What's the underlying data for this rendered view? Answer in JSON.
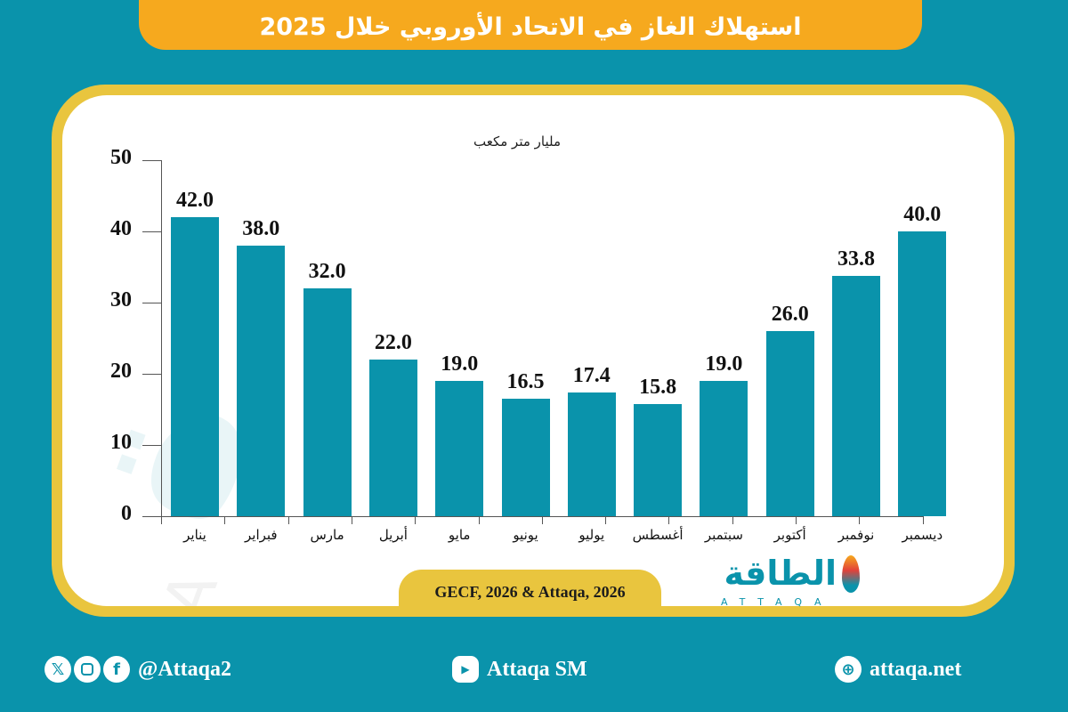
{
  "title": "استهلاك الغاز في الاتحاد الأوروبي خلال 2025",
  "unit_label": "مليار متر مكعب",
  "source": "GECF, 2026 & Attaqa, 2026",
  "logo": {
    "arabic": "الطاقة",
    "latin": "ATTAQA"
  },
  "footer": {
    "social_handle": "@Attaqa2",
    "youtube": "Attaqa SM",
    "website": "attaqa.net",
    "icons": [
      "x-icon",
      "instagram-icon",
      "facebook-icon",
      "youtube-icon",
      "globe-icon"
    ]
  },
  "colors": {
    "background": "#0a93ab",
    "title_bar": "#f6a91e",
    "frame": "#e9c53e",
    "bar": "#0a93ab"
  },
  "y_ticks": [
    "0",
    "10",
    "20",
    "30",
    "40",
    "50"
  ],
  "bars": [
    {
      "label": "يناير",
      "value": "42.0"
    },
    {
      "label": "فبراير",
      "value": "38.0"
    },
    {
      "label": "مارس",
      "value": "32.0"
    },
    {
      "label": "أبريل",
      "value": "22.0"
    },
    {
      "label": "مايو",
      "value": "19.0"
    },
    {
      "label": "يونيو",
      "value": "16.5"
    },
    {
      "label": "يوليو",
      "value": "17.4"
    },
    {
      "label": "أغسطس",
      "value": "15.8"
    },
    {
      "label": "سبتمبر",
      "value": "19.0"
    },
    {
      "label": "أكتوبر",
      "value": "26.0"
    },
    {
      "label": "نوفمبر",
      "value": "33.8"
    },
    {
      "label": "ديسمبر",
      "value": "40.0"
    }
  ],
  "chart_data": {
    "type": "bar",
    "title": "استهلاك الغاز في الاتحاد الأوروبي خلال 2025",
    "ylabel": "مليار متر مكعب",
    "xlabel": "",
    "categories": [
      "يناير",
      "فبراير",
      "مارس",
      "أبريل",
      "مايو",
      "يونيو",
      "يوليو",
      "أغسطس",
      "سبتمبر",
      "أكتوبر",
      "نوفمبر",
      "ديسمبر"
    ],
    "values": [
      42.0,
      38.0,
      32.0,
      22.0,
      19.0,
      16.5,
      17.4,
      15.8,
      19.0,
      26.0,
      33.8,
      40.0
    ],
    "ylim": [
      0,
      50
    ],
    "yticks": [
      0,
      10,
      20,
      30,
      40,
      50
    ],
    "grid": false,
    "legend": null,
    "data_labels": true,
    "source": "GECF, 2026 & Attaqa, 2026"
  }
}
